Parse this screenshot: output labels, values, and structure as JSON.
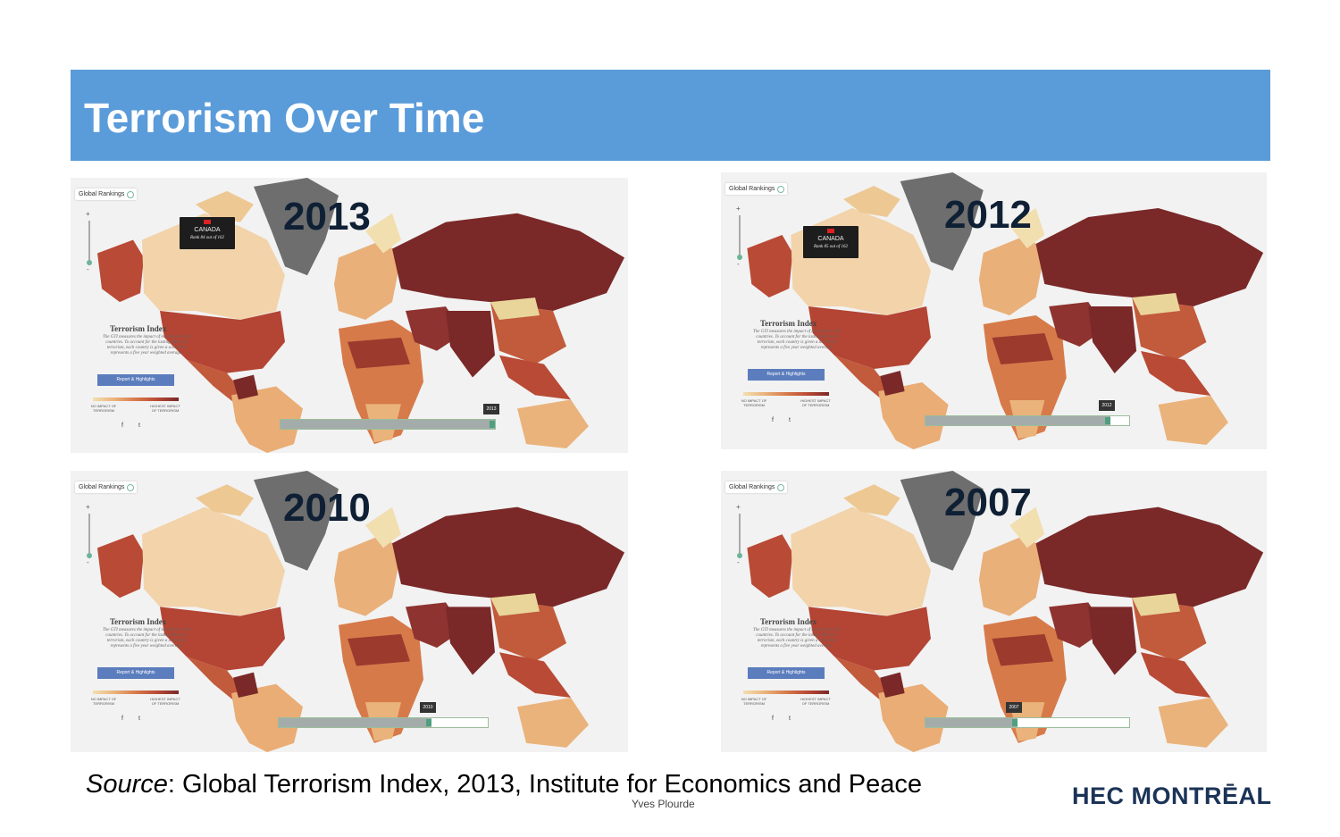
{
  "slide": {
    "title": "Terrorism Over Time",
    "source_prefix": "Source",
    "source_rest": ": Global Terrorism Index, 2013, Institute for Economics and Peace",
    "author": "Yves Plourde",
    "logo": "HEC MONTRĒAL"
  },
  "map_ui": {
    "global_rankings": "Global Rankings",
    "legend_title": "Terrorism Index",
    "legend_desc": "The GTI measures the impact of terrorism in 162 countries. To account for the lasting effects of terrorism, each country is given a score that represents a five year weighted average.",
    "report_button": "Report & Highlights",
    "low_label": "NO IMPACT OF TERRORISM",
    "high_label": "HIGHEST IMPACT OF TERRORISM",
    "facebook": "f",
    "twitter": "t",
    "tooltip_country": "CANADA",
    "tooltip_rank": "Rank 84 out of 162",
    "tooltip_rank_2012": "Rank 85 out of 162"
  },
  "colors": {
    "title_bar": "#5a9bd9",
    "low_impact": "#f2dfb0",
    "high_impact": "#7a2828",
    "greenland": "#6e6e6e"
  },
  "panels": [
    {
      "year": "2013",
      "timeline_label": "2013",
      "timeline_progress": 1.0,
      "show_tooltip": true
    },
    {
      "year": "2012",
      "timeline_label": "2012",
      "timeline_progress": 0.91,
      "show_tooltip": true
    },
    {
      "year": "2010",
      "timeline_label": "2010",
      "timeline_progress": 0.73,
      "show_tooltip": false
    },
    {
      "year": "2007",
      "timeline_label": "2007",
      "timeline_progress": 0.45,
      "show_tooltip": false
    }
  ]
}
